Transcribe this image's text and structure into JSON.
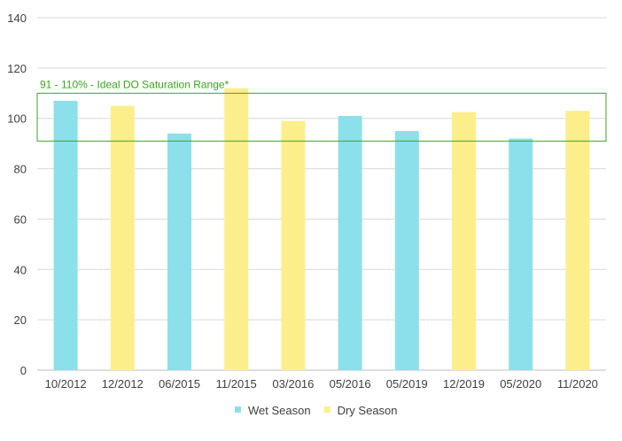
{
  "chart_data": {
    "type": "bar",
    "categories": [
      "10/2012",
      "12/2012",
      "06/2015",
      "11/2015",
      "03/2016",
      "05/2016",
      "05/2019",
      "12/2019",
      "05/2020",
      "11/2020"
    ],
    "values": [
      107,
      105,
      94,
      112,
      99,
      101,
      95,
      102.5,
      92,
      103
    ],
    "season": [
      "wet",
      "dry",
      "wet",
      "dry",
      "dry",
      "wet",
      "wet",
      "dry",
      "wet",
      "dry"
    ],
    "ylim": [
      0,
      140
    ],
    "yticks": [
      0,
      20,
      40,
      60,
      80,
      100,
      120,
      140
    ],
    "grid": true,
    "legend_position": "bottom",
    "legend": [
      {
        "key": "wet",
        "label": "Wet Season",
        "color": "#8ce0ec"
      },
      {
        "key": "dry",
        "label": "Dry Season",
        "color": "#fdee8c"
      }
    ],
    "annotation": {
      "label": "91 - 110% - Ideal DO Saturation Range*",
      "ymin": 91,
      "ymax": 110,
      "color": "#3aa51f"
    }
  }
}
